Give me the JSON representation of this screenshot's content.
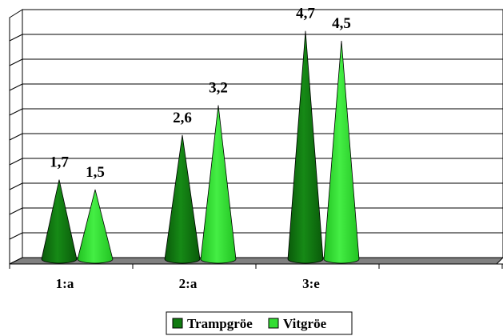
{
  "chart_data": {
    "type": "bar",
    "shape": "cone",
    "categories": [
      "1:a",
      "2:a",
      "3:e"
    ],
    "series": [
      {
        "name": "Trampgröe",
        "values": [
          1.7,
          2.6,
          4.7
        ],
        "color": "#107A10",
        "label_texts": [
          "1,7",
          "2,6",
          "4,7"
        ]
      },
      {
        "name": "Vitgröe",
        "values": [
          1.5,
          3.2,
          4.5
        ],
        "color": "#33DD33",
        "label_texts": [
          "1,5",
          "3,2",
          "4,5"
        ]
      }
    ],
    "ylim": [
      0,
      5
    ],
    "y_gridline_count": 10,
    "grid": true,
    "legend_position": "bottom",
    "floor_color": "#808080"
  }
}
